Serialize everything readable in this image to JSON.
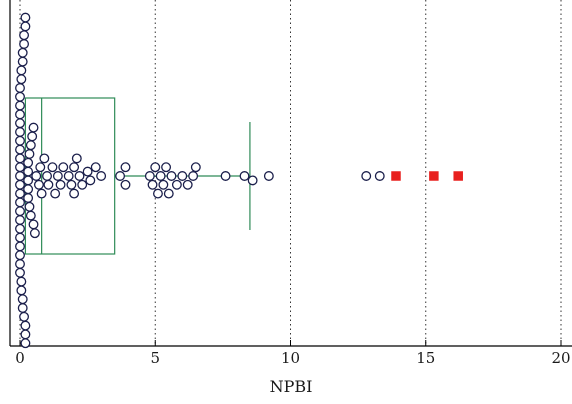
{
  "chart_data": {
    "type": "box-dot",
    "title": "",
    "xlabel": "NPBI",
    "ylabel": "",
    "xlim": [
      -0.4,
      20.5
    ],
    "x_ticks": [
      0,
      5,
      10,
      15,
      20
    ],
    "x_tick_labels": [
      "0",
      "5",
      "10",
      "15",
      "20"
    ],
    "grid": "vertical dotted at major ticks",
    "box": {
      "whisker_low": 0.2,
      "q1": 0.2,
      "median": 0.8,
      "q3": 3.5,
      "whisker_high": 8.5
    },
    "points": [
      0.0,
      0.0,
      0.0,
      0.0,
      0.0,
      0.0,
      0.0,
      0.0,
      0.0,
      0.0,
      0.0,
      0.0,
      0.0,
      0.0,
      0.0,
      0.0,
      0.0,
      0.0,
      0.0,
      0.0,
      0.0,
      0.0,
      0.05,
      0.05,
      0.05,
      0.05,
      0.1,
      0.1,
      0.1,
      0.1,
      0.15,
      0.15,
      0.15,
      0.2,
      0.2,
      0.2,
      0.2,
      0.2,
      0.3,
      0.3,
      0.3,
      0.3,
      0.3,
      0.35,
      0.35,
      0.4,
      0.4,
      0.45,
      0.5,
      0.5,
      0.55,
      0.6,
      0.7,
      0.75,
      0.8,
      0.9,
      1.0,
      1.05,
      1.2,
      1.3,
      1.4,
      1.5,
      1.6,
      1.8,
      1.9,
      2.0,
      2.0,
      2.1,
      2.2,
      2.3,
      2.5,
      2.6,
      2.8,
      3.0,
      3.7,
      3.9,
      3.9,
      4.8,
      4.9,
      5.0,
      5.1,
      5.2,
      5.3,
      5.4,
      5.5,
      5.6,
      5.8,
      6.0,
      6.2,
      6.4,
      6.5,
      7.6,
      8.3,
      8.6,
      9.2,
      12.8,
      13.3
    ],
    "outliers": [
      13.9,
      15.3,
      16.2
    ],
    "colors": {
      "box": "#2e8b57",
      "point_stroke": "#1b1f4b",
      "point_fill": "#ffffff",
      "outlier": "#e8201e",
      "axis": "#000000",
      "grid": "#333333"
    }
  }
}
